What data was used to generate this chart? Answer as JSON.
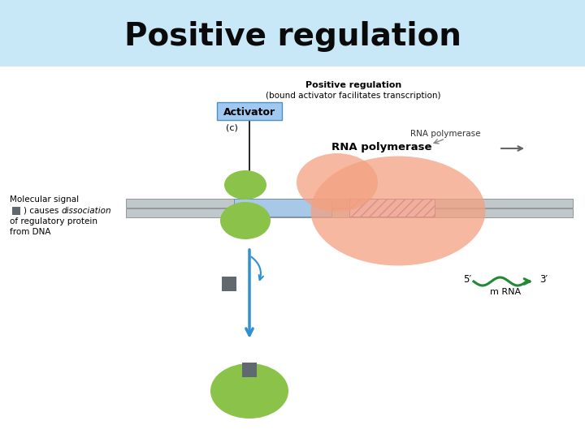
{
  "title": "Positive regulation",
  "title_fontsize": 28,
  "title_fontweight": "bold",
  "title_color": "#0a0a0a",
  "bg_color_top": "#c8e8f8",
  "subtitle": "Positive regulation",
  "subtitle2": "(bound activator facilitates transcription)",
  "label_activator": "Activator",
  "label_c": "(c)",
  "label_rna_poly_top": "RNA polymerase",
  "label_rna_poly_bold": "RNA polymerase",
  "label_mol_signal1": "Molecular signal",
  "label_mol_signal3": "of regulatory protein",
  "label_mol_signal4": "from DNA",
  "label_5prime": "5′",
  "label_3prime": "3′",
  "label_mrna": "m RNA",
  "green_color": "#8bc34a",
  "salmon_color": "#f4a080",
  "blue_light": "#a0c8f0",
  "blue_promoter": "#a8c8e8",
  "gray_dna": "#c0c8cc",
  "gray_dark": "#606870",
  "arrow_blue": "#3090d0",
  "mrna_green": "#228833",
  "purple_hatch": "#9060a0",
  "purple_hatch_bg": "#e8d8f0"
}
